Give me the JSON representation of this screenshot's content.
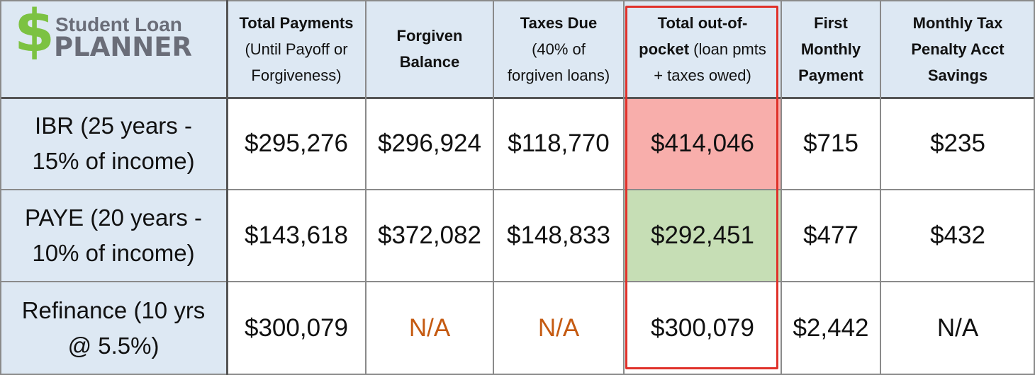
{
  "logo": {
    "dollar": "$",
    "line1": "Student Loan",
    "line2": "PLANNER"
  },
  "headers": [
    {
      "bold": "Total Payments",
      "rest": [
        "(Until Payoff or",
        "Forgiveness)"
      ]
    },
    {
      "bold": "Forgiven",
      "bold2": "Balance",
      "rest": []
    },
    {
      "bold": "Taxes Due",
      "rest": [
        "(40% of",
        "forgiven loans)"
      ]
    },
    {
      "bold": "Total out-of-",
      "bold_inline": "pocket",
      "inline_rest": " (loan pmts",
      "rest": [
        "+ taxes owed)"
      ]
    },
    {
      "bold": "First",
      "bold2": "Monthly",
      "bold3": "Payment",
      "rest": []
    },
    {
      "bold": "Monthly Tax",
      "bold2": "Penalty Acct",
      "bold3": "Savings",
      "rest": []
    }
  ],
  "rows": [
    {
      "label1": "IBR (25 years -",
      "label2": "15% of income)",
      "values": [
        "$295,276",
        "$296,924",
        "$118,770",
        "$414,046",
        "$715",
        "$235"
      ]
    },
    {
      "label1": "PAYE (20 years -",
      "label2": "10% of income)",
      "values": [
        "$143,618",
        "$372,082",
        "$148,833",
        "$292,451",
        "$477",
        "$432"
      ]
    },
    {
      "label1": "Refinance (10 yrs",
      "label2": "@ 5.5%)",
      "values": [
        "$300,079",
        "N/A",
        "N/A",
        "$300,079",
        "$2,442",
        "N/A"
      ]
    }
  ],
  "colors": {
    "header_bg": "#dde8f3",
    "highlight_red": "#f8aeab",
    "highlight_green": "#c6deb5",
    "na_orange": "#c55a11",
    "box_border": "#e0312a",
    "logo_green": "#7cc242",
    "logo_gray": "#6a6d78"
  }
}
